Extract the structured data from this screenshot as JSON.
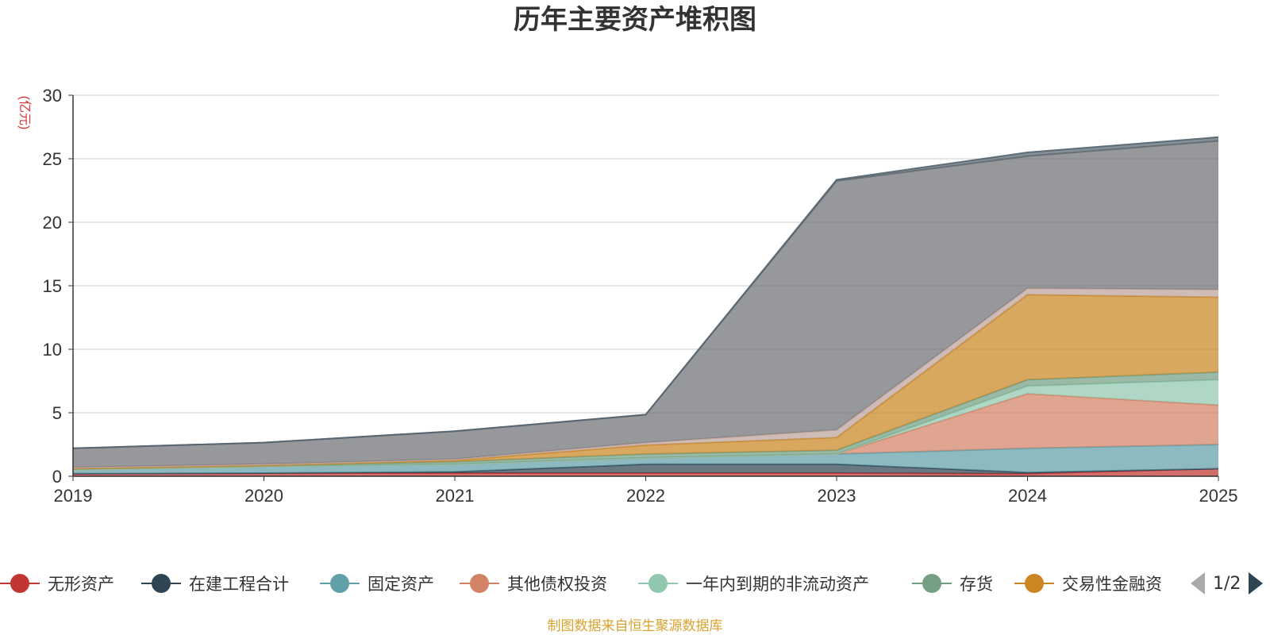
{
  "chart_data": {
    "type": "area",
    "title": "历年主要资产堆积图",
    "ylabel": "(亿元)",
    "xlabel": "",
    "ylim": [
      0,
      30
    ],
    "yticks": [
      0,
      5,
      10,
      15,
      20,
      25,
      30
    ],
    "x": [
      "2019",
      "2020",
      "2021",
      "2022",
      "2023",
      "2024",
      "2025"
    ],
    "stacked": true,
    "grid": true,
    "legend_position": "bottom",
    "series": [
      {
        "name": "无形资产",
        "color": "#c23531",
        "values": [
          0.2,
          0.25,
          0.25,
          0.25,
          0.25,
          0.2,
          0.6
        ]
      },
      {
        "name": "在建工程合计",
        "color": "#2f4554",
        "values": [
          0.0,
          0.0,
          0.1,
          0.7,
          0.7,
          0.1,
          0.0
        ]
      },
      {
        "name": "固定资产",
        "color": "#61a0a8",
        "values": [
          0.3,
          0.5,
          0.6,
          0.5,
          0.8,
          1.9,
          1.9
        ]
      },
      {
        "name": "其他债权投资",
        "color": "#d48265",
        "values": [
          0.0,
          0.0,
          0.0,
          0.0,
          0.0,
          4.3,
          3.1
        ]
      },
      {
        "name": "一年内到期的非流动资产",
        "color": "#91c7ae",
        "values": [
          0.0,
          0.0,
          0.0,
          0.0,
          0.0,
          0.6,
          2.0
        ]
      },
      {
        "name": "存货",
        "color": "#749f83",
        "values": [
          0.1,
          0.1,
          0.2,
          0.3,
          0.3,
          0.5,
          0.6
        ]
      },
      {
        "name": "交易性金融资",
        "color": "#ca8622",
        "values": [
          0.0,
          0.0,
          0.1,
          0.7,
          1.0,
          6.7,
          5.9
        ]
      },
      {
        "name": "",
        "color": "#bda29a",
        "values": [
          0.1,
          0.1,
          0.1,
          0.2,
          0.6,
          0.5,
          0.6
        ]
      },
      {
        "name": "",
        "color": "#6e7074",
        "values": [
          1.5,
          1.7,
          2.2,
          2.2,
          19.6,
          10.4,
          11.7
        ]
      },
      {
        "name": "",
        "color": "#546570",
        "values": [
          0.0,
          0.0,
          0.0,
          0.0,
          0.1,
          0.3,
          0.3
        ]
      }
    ]
  },
  "legend": {
    "page_indicator": "1/2"
  },
  "footer": {
    "source": "制图数据来自恒生聚源数据库"
  }
}
